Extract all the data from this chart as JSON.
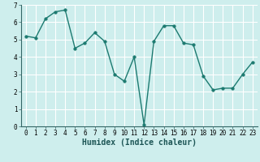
{
  "x": [
    0,
    1,
    2,
    3,
    4,
    5,
    6,
    7,
    8,
    9,
    10,
    11,
    12,
    13,
    14,
    15,
    16,
    17,
    18,
    19,
    20,
    21,
    22,
    23
  ],
  "y": [
    5.2,
    5.1,
    6.2,
    6.6,
    6.7,
    4.5,
    4.8,
    5.4,
    4.9,
    3.0,
    2.6,
    4.0,
    0.1,
    4.9,
    5.8,
    5.8,
    4.8,
    4.7,
    2.9,
    2.1,
    2.2,
    2.2,
    3.0,
    3.7
  ],
  "line_color": "#1c7a70",
  "marker": "o",
  "marker_size": 2.5,
  "linewidth": 1.0,
  "xlabel": "Humidex (Indice chaleur)",
  "xlim": [
    -0.5,
    23.5
  ],
  "ylim": [
    0,
    7
  ],
  "yticks": [
    0,
    1,
    2,
    3,
    4,
    5,
    6,
    7
  ],
  "xticks": [
    0,
    1,
    2,
    3,
    4,
    5,
    6,
    7,
    8,
    9,
    10,
    11,
    12,
    13,
    14,
    15,
    16,
    17,
    18,
    19,
    20,
    21,
    22,
    23
  ],
  "bg_color": "#ceeeed",
  "grid_color": "#ffffff",
  "tick_fontsize": 5.5,
  "xlabel_fontsize": 7.0
}
